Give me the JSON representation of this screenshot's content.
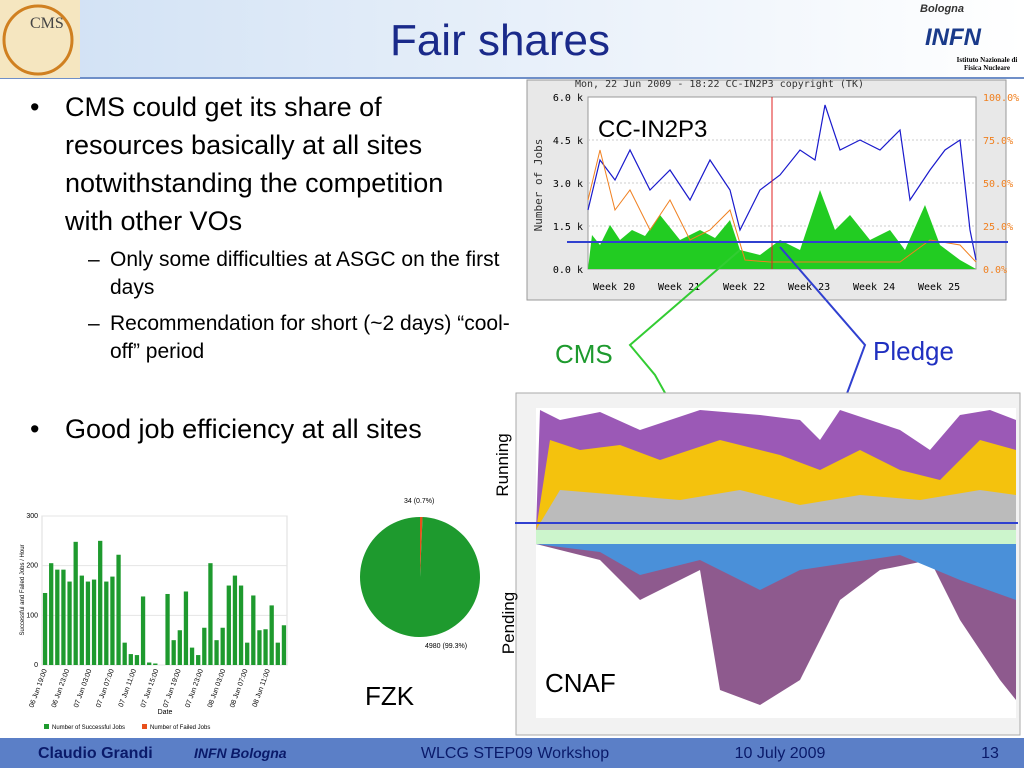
{
  "header": {
    "title": "Fair shares",
    "logo_left": "CMS",
    "logo_right_city": "Bologna",
    "logo_right": "INFN",
    "logo_right_sub": "Istituto Nazionale di Fisica Nucleare"
  },
  "bullets": [
    {
      "text": "CMS could get its share of resources basically at all sites notwithstanding the competition with other VOs",
      "sub": [
        "Only some difficulties at ASGC on the first days",
        "Recommendation for short (~2 days) “cool-off” period"
      ]
    },
    {
      "text": "Good job efficiency at all sites",
      "sub": []
    }
  ],
  "in2p3": {
    "title": "Mon, 22 Jun 2009 - 18:22   CC-IN2P3 copyright (TK)",
    "label": "CC-IN2P3",
    "ylabel": "Number of Jobs",
    "yticks": [
      "0.0 k",
      "1.5 k",
      "3.0 k",
      "4.5 k",
      "6.0 k"
    ],
    "y2ticks": [
      "0.0%",
      "25.0%",
      "50.0%",
      "75.0%",
      "100.0%"
    ],
    "weeks": [
      "Week 20",
      "Week 21",
      "Week 22",
      "Week 23",
      "Week 24",
      "Week 25"
    ]
  },
  "annotations": {
    "cms": "CMS",
    "pledge": "Pledge"
  },
  "cnaf": {
    "label": "CNAF",
    "running": "Running",
    "pending": "Pending"
  },
  "fzk": {
    "label": "FZK",
    "pie": {
      "values": [
        34,
        4980
      ],
      "value_labels": [
        "34 (0.7%)",
        "4980 (99.3%)"
      ],
      "colors": [
        "#e8501c",
        "#1e9a2e"
      ]
    }
  },
  "bar_chart": {
    "type": "bar",
    "ylabel": "Successful and Failed Jobs / Hour",
    "xlabel": "Date",
    "ylim": [
      0,
      300
    ],
    "yticks": [
      0,
      100,
      200,
      300
    ],
    "color": "#1e9a2e",
    "values": [
      145,
      205,
      192,
      192,
      168,
      248,
      180,
      168,
      172,
      250,
      168,
      178,
      222,
      45,
      22,
      20,
      138,
      5,
      3,
      0,
      143,
      50,
      70,
      148,
      35,
      20,
      75,
      205,
      50,
      75,
      160,
      180,
      160,
      45,
      140,
      70,
      72,
      120,
      45,
      80
    ],
    "xticks": [
      "06 Jun 19:00",
      "06 Jun 23:00",
      "07 Jun 03:00",
      "07 Jun 07:00",
      "07 Jun 11:00",
      "07 Jun 15:00",
      "07 Jun 19:00",
      "07 Jun 23:00",
      "08 Jun 03:00",
      "08 Jun 07:00",
      "08 Jun 11:00"
    ],
    "legend": [
      {
        "name": "Number of Successful Jobs",
        "color": "#1e9a2e"
      },
      {
        "name": "Number of Failed Jobs",
        "color": "#e8501c"
      }
    ]
  },
  "footer": {
    "author": "Claudio Grandi",
    "affiliation": "INFN Bologna",
    "event": "WLCG STEP09 Workshop",
    "date": "10 July 2009",
    "page": "13"
  }
}
